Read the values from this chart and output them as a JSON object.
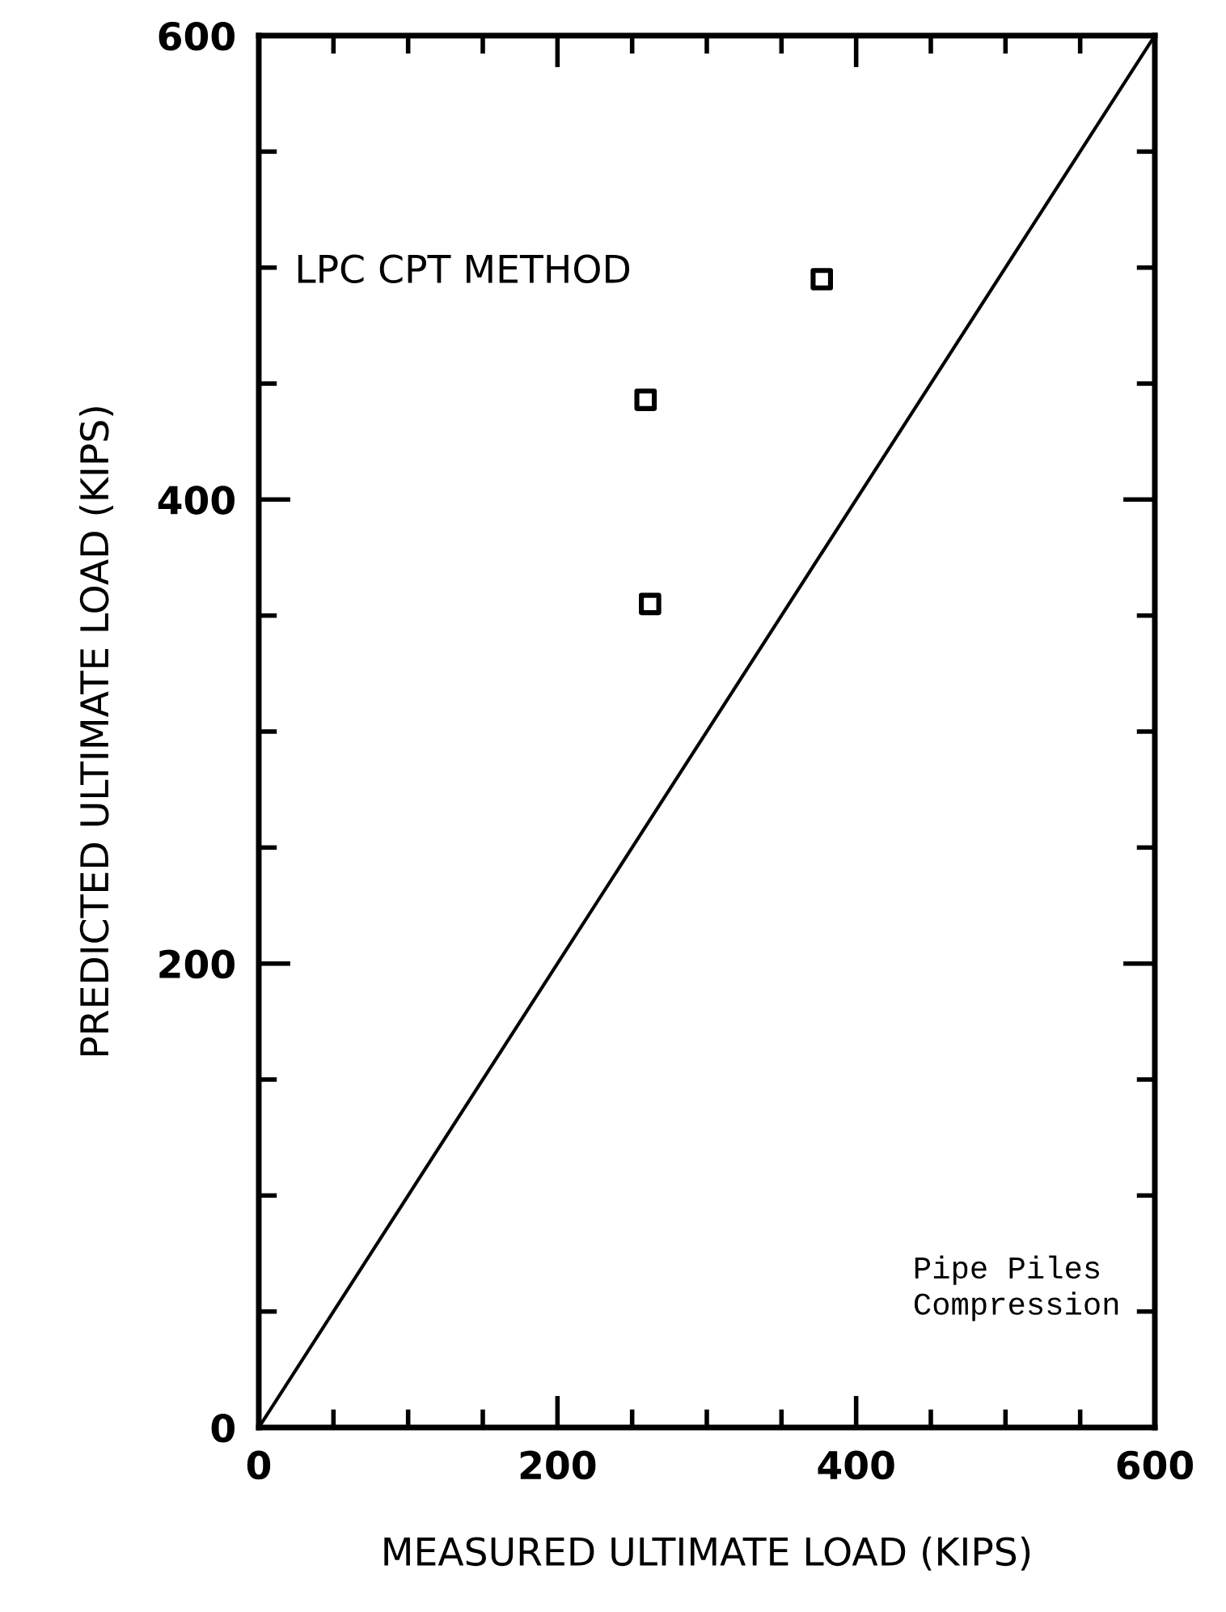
{
  "chart_data": {
    "type": "scatter",
    "xlabel": "MEASURED ULTIMATE LOAD (KIPS)",
    "ylabel": "PREDICTED ULTIMATE LOAD (KIPS)",
    "annotations": [
      "LPC CPT METHOD",
      "Pipe Piles\nCompression"
    ],
    "series": [
      {
        "x": [
          377,
          259,
          262
        ],
        "values": [
          495,
          443,
          355
        ],
        "color": "#000000",
        "marker": "square"
      },
      {
        "type": "line",
        "x": [
          0,
          600
        ],
        "values": [
          0,
          600
        ],
        "color": "#000000",
        "marker": "none",
        "line_style": "solid"
      }
    ],
    "xlim": [
      0,
      600
    ],
    "ylim": [
      0,
      600
    ],
    "xticks": [
      0,
      {
        "value": 50,
        "label": null
      },
      {
        "value": 100,
        "label": null
      },
      {
        "value": 150,
        "label": null
      },
      200,
      {
        "value": 250,
        "label": null
      },
      {
        "value": 300,
        "label": null
      },
      {
        "value": 350,
        "label": null
      },
      400,
      {
        "value": 450,
        "label": null
      },
      {
        "value": 500,
        "label": null
      },
      {
        "value": 550,
        "label": null
      },
      600
    ],
    "yticks": [
      0,
      {
        "value": 50,
        "label": null
      },
      {
        "value": 100,
        "label": null
      },
      {
        "value": 150,
        "label": null
      },
      200,
      {
        "value": 250,
        "label": null
      },
      {
        "value": 300,
        "label": null
      },
      {
        "value": 350,
        "label": null
      },
      400,
      {
        "value": 450,
        "label": null
      },
      {
        "value": 500,
        "label": null
      },
      {
        "value": 550,
        "label": null
      },
      600
    ],
    "grid": false,
    "legend": false
  }
}
